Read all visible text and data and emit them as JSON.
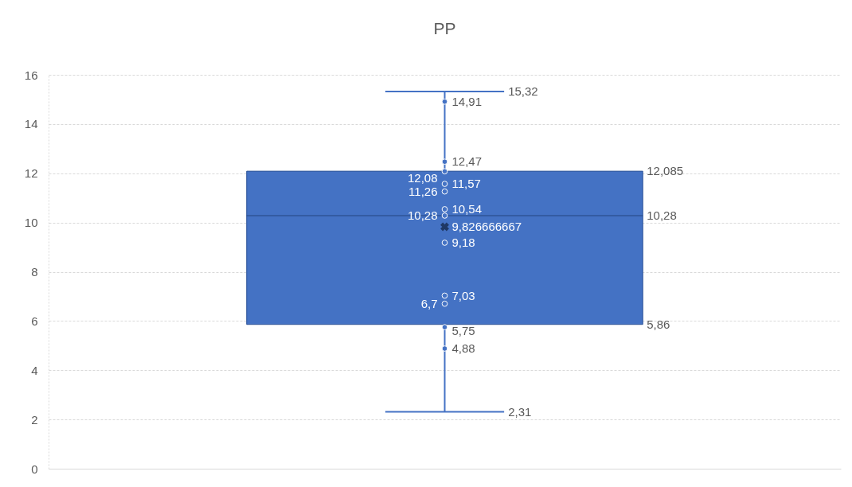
{
  "chart_data": {
    "type": "box",
    "title": "PP",
    "categories": [
      null
    ],
    "series": [
      {
        "color": "#4472c4",
        "boxes": [
          {
            "low": 2.31,
            "q1": 5.86,
            "median": 10.28,
            "q3": 12.085,
            "high": 15.32,
            "mean": 9.826666667
          }
        ]
      },
      {
        "type": "scatter",
        "color": "#4472c4",
        "x": [
          null,
          null,
          null,
          null,
          null,
          null,
          null,
          null,
          null,
          null,
          null,
          null
        ],
        "values": [
          14.91,
          12.47,
          12.08,
          11.57,
          11.26,
          10.54,
          10.28,
          9.18,
          7.03,
          6.7,
          5.75,
          4.88
        ],
        "value_labels": [
          "14,91",
          "12,47",
          "12,08",
          "11,57",
          "11,26",
          "10,54",
          "10,28",
          "9,18",
          "7,03",
          "6,7",
          "5,75",
          "4,88"
        ]
      }
    ],
    "annotations": [
      "15,32",
      "12,085",
      "10,28",
      "9,826666667",
      "5,86",
      "2,31"
    ],
    "ylim": [
      0,
      16
    ],
    "yticks": [
      0,
      2,
      4,
      6,
      8,
      10,
      12,
      14,
      16
    ],
    "grid": "y",
    "tick_labels": "y",
    "marker": "circle"
  }
}
